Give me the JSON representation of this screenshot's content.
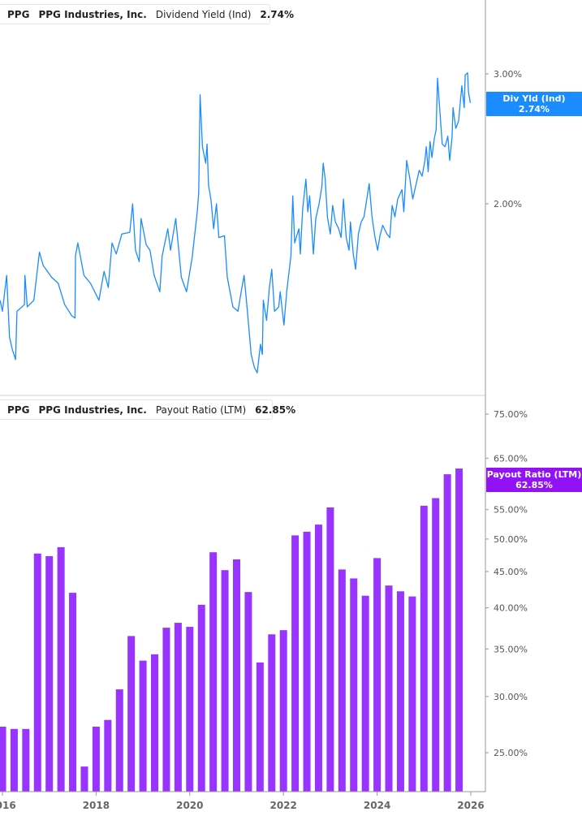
{
  "colors": {
    "dividend_line": "#1a8cff",
    "payout_bar": "#9933ff",
    "axis": "#999999",
    "text": "#555555"
  },
  "legends": {
    "top": {
      "ticker": "PPG",
      "company": "PPG Industries, Inc.",
      "metric": "Dividend Yield (Ind)",
      "value": "2.74%"
    },
    "bottom": {
      "ticker": "PPG",
      "company": "PPG Industries, Inc.",
      "metric": "Payout Ratio (LTM)",
      "value": "62.85%"
    }
  },
  "tags": {
    "top": {
      "label": "Div Yld (Ind)",
      "value": "2.74%"
    },
    "bottom": {
      "label": "Payout Ratio (LTM)",
      "value": "62.85%"
    }
  },
  "chart_data": [
    {
      "type": "line",
      "series_name": "Dividend Yield (Ind)",
      "yscale": "log",
      "ytick_labels": [
        "3.00%",
        "2.00%"
      ],
      "yticks": [
        3.0,
        2.0
      ],
      "xtick_labels": [
        "2016",
        "2018",
        "2020",
        "2022",
        "2024",
        "2026"
      ],
      "x": [
        2015.95,
        2016.0,
        2016.09,
        2016.15,
        2016.21,
        2016.28,
        2016.31,
        2016.47,
        2016.48,
        2016.53,
        2016.67,
        2016.79,
        2016.87,
        2017.05,
        2017.19,
        2017.33,
        2017.48,
        2017.55,
        2017.56,
        2017.61,
        2017.74,
        2017.88,
        2018.06,
        2018.17,
        2018.26,
        2018.34,
        2018.43,
        2018.55,
        2018.72,
        2018.78,
        2018.84,
        2018.92,
        2018.96,
        2019.07,
        2019.15,
        2019.24,
        2019.36,
        2019.41,
        2019.53,
        2019.59,
        2019.7,
        2019.82,
        2019.93,
        2020.05,
        2020.16,
        2020.19,
        2020.22,
        2020.27,
        2020.34,
        2020.37,
        2020.4,
        2020.45,
        2020.51,
        2020.57,
        2020.62,
        2020.74,
        2020.8,
        2020.92,
        2021.03,
        2021.09,
        2021.16,
        2021.23,
        2021.31,
        2021.38,
        2021.44,
        2021.51,
        2021.55,
        2021.57,
        2021.64,
        2021.7,
        2021.75,
        2021.81,
        2021.9,
        2021.93,
        2022.01,
        2022.07,
        2022.16,
        2022.2,
        2022.24,
        2022.33,
        2022.36,
        2022.41,
        2022.48,
        2022.52,
        2022.56,
        2022.64,
        2022.69,
        2022.76,
        2022.82,
        2022.85,
        2022.89,
        2022.94,
        2023.0,
        2023.05,
        2023.11,
        2023.18,
        2023.23,
        2023.28,
        2023.34,
        2023.4,
        2023.43,
        2023.49,
        2023.54,
        2023.6,
        2023.66,
        2023.72,
        2023.78,
        2023.83,
        2023.89,
        2023.95,
        2024.01,
        2024.06,
        2024.12,
        2024.21,
        2024.27,
        2024.32,
        2024.38,
        2024.44,
        2024.53,
        2024.57,
        2024.63,
        2024.7,
        2024.76,
        2024.82,
        2024.9,
        2024.96,
        2025.02,
        2025.05,
        2025.09,
        2025.13,
        2025.17,
        2025.22,
        2025.26,
        2025.29,
        2025.34,
        2025.39,
        2025.45,
        2025.51,
        2025.55,
        2025.6,
        2025.62,
        2025.68,
        2025.74,
        2025.77,
        2025.81,
        2025.86,
        2025.88,
        2025.93,
        2025.95,
        2025.99
      ],
      "y": [
        1.48,
        1.43,
        1.6,
        1.32,
        1.27,
        1.23,
        1.43,
        1.46,
        1.6,
        1.45,
        1.48,
        1.72,
        1.65,
        1.59,
        1.56,
        1.46,
        1.41,
        1.4,
        1.7,
        1.77,
        1.6,
        1.56,
        1.48,
        1.62,
        1.54,
        1.77,
        1.71,
        1.82,
        1.83,
        2.0,
        1.73,
        1.67,
        1.91,
        1.76,
        1.73,
        1.6,
        1.52,
        1.7,
        1.85,
        1.73,
        1.91,
        1.59,
        1.52,
        1.69,
        1.95,
        2.07,
        2.81,
        2.39,
        2.27,
        2.41,
        2.12,
        2.03,
        1.85,
        2.0,
        1.8,
        1.81,
        1.59,
        1.45,
        1.43,
        1.51,
        1.6,
        1.43,
        1.25,
        1.2,
        1.18,
        1.29,
        1.25,
        1.48,
        1.39,
        1.54,
        1.63,
        1.43,
        1.45,
        1.52,
        1.37,
        1.52,
        1.7,
        2.05,
        1.77,
        1.85,
        1.71,
        1.97,
        2.16,
        1.95,
        2.05,
        1.71,
        1.91,
        2.0,
        2.11,
        2.27,
        2.16,
        1.92,
        1.82,
        1.99,
        1.89,
        1.85,
        1.8,
        2.03,
        1.8,
        1.73,
        1.89,
        1.71,
        1.63,
        1.82,
        1.89,
        1.92,
        2.03,
        2.13,
        1.92,
        1.81,
        1.73,
        1.81,
        1.87,
        1.82,
        1.8,
        1.99,
        1.92,
        2.03,
        2.09,
        1.95,
        2.29,
        2.16,
        2.03,
        2.11,
        2.22,
        2.18,
        2.29,
        2.39,
        2.21,
        2.43,
        2.31,
        2.45,
        2.52,
        2.96,
        2.67,
        2.41,
        2.39,
        2.47,
        2.29,
        2.46,
        2.7,
        2.53,
        2.59,
        2.72,
        2.89,
        2.7,
        2.99,
        3.01,
        2.84,
        2.74
      ]
    },
    {
      "type": "bar",
      "series_name": "Payout Ratio (LTM)",
      "yscale": "log",
      "ytick_labels": [
        "75.00%",
        "65.00%",
        "55.00%",
        "50.00%",
        "45.00%",
        "40.00%",
        "35.00%",
        "30.00%",
        "25.00%"
      ],
      "yticks": [
        75,
        65,
        55,
        50,
        45,
        40,
        35,
        30,
        25
      ],
      "xtick_labels": [
        "2016",
        "2018",
        "2020",
        "2022",
        "2024",
        "2026"
      ],
      "categories": [
        "2016 Q1",
        "2016 Q2",
        "2016 Q3",
        "2016 Q4",
        "2017 Q1",
        "2017 Q2",
        "2017 Q3",
        "2017 Q4",
        "2018 Q1",
        "2018 Q2",
        "2018 Q3",
        "2018 Q4",
        "2019 Q1",
        "2019 Q2",
        "2019 Q3",
        "2019 Q4",
        "2020 Q1",
        "2020 Q2",
        "2020 Q3",
        "2020 Q4",
        "2021 Q1",
        "2021 Q2",
        "2021 Q3",
        "2021 Q4",
        "2022 Q1",
        "2022 Q2",
        "2022 Q3",
        "2022 Q4",
        "2023 Q1",
        "2023 Q2",
        "2023 Q3",
        "2023 Q4",
        "2024 Q1",
        "2024 Q2",
        "2024 Q3",
        "2024 Q4",
        "2025 Q1",
        "2025 Q2",
        "2025 Q3",
        "2025 Q4"
      ],
      "values": [
        27.2,
        27.0,
        27.0,
        47.7,
        47.3,
        48.7,
        42.0,
        23.9,
        27.2,
        27.8,
        30.7,
        36.5,
        33.7,
        34.4,
        37.5,
        38.1,
        37.6,
        40.4,
        47.9,
        45.2,
        46.8,
        42.1,
        33.5,
        36.7,
        37.2,
        50.6,
        51.2,
        52.4,
        55.4,
        45.3,
        44.0,
        41.6,
        47.0,
        43.0,
        42.2,
        41.5,
        55.7,
        57.1,
        61.7,
        62.85
      ]
    }
  ]
}
